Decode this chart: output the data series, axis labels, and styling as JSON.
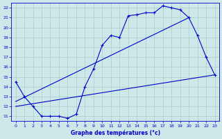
{
  "line1_x": [
    0,
    1,
    2,
    3,
    4,
    5,
    6,
    7,
    8,
    9,
    10,
    11,
    12,
    13,
    14,
    15,
    16,
    17,
    18,
    19,
    20,
    21,
    22,
    23
  ],
  "line1_y": [
    14.5,
    13.0,
    12.0,
    11.0,
    11.0,
    11.0,
    10.8,
    11.2,
    14.0,
    15.8,
    18.2,
    19.2,
    19.0,
    21.2,
    21.3,
    21.5,
    21.5,
    22.2,
    22.0,
    21.8,
    21.0,
    19.2,
    17.0,
    15.2
  ],
  "line2_x": [
    0,
    23
  ],
  "line2_y": [
    12.0,
    15.2
  ],
  "line3_x": [
    0,
    20
  ],
  "line3_y": [
    12.5,
    21.0
  ],
  "bg_color": "#cce8e8",
  "grid_color": "#aacccc",
  "line_color": "#0000cc",
  "title": "Graphe des températures (°c)",
  "xlim": [
    -0.5,
    23.5
  ],
  "ylim": [
    10.5,
    22.5
  ],
  "yticks": [
    11,
    12,
    13,
    14,
    15,
    16,
    17,
    18,
    19,
    20,
    21,
    22
  ],
  "xticks": [
    0,
    1,
    2,
    3,
    4,
    5,
    6,
    7,
    8,
    9,
    10,
    11,
    12,
    13,
    14,
    15,
    16,
    17,
    18,
    19,
    20,
    21,
    22,
    23
  ]
}
